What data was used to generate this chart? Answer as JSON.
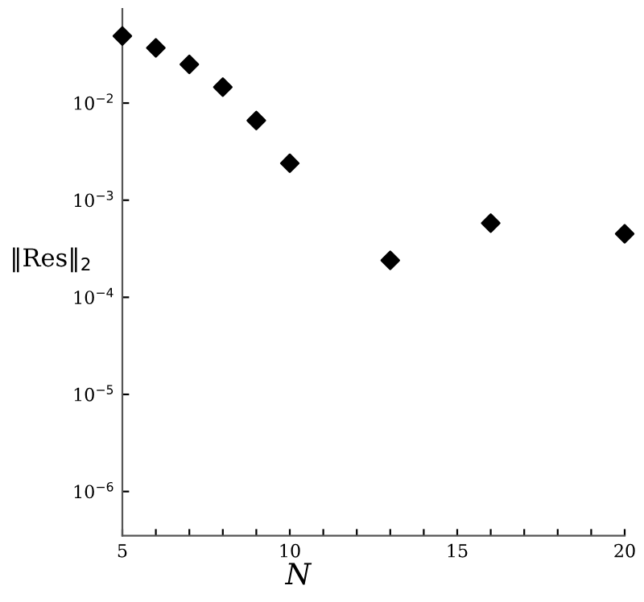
{
  "chart_data": {
    "type": "scatter",
    "xlabel": "N",
    "ylabel": "‖Res‖$_{2}$",
    "x": [
      5,
      6,
      7,
      8,
      9,
      10,
      13,
      16,
      20
    ],
    "series": [
      {
        "color": "#000000",
        "values": [
          0.049,
          0.037,
          0.025,
          0.0146,
          0.0066,
          0.0024,
          0.00024,
          0.00058,
          0.00045
        ]
      }
    ],
    "log": "y",
    "marker": "diamond",
    "grid": false,
    "xlim": [
      5,
      20
    ],
    "ylim": [
      3.5e-07,
      0.093
    ],
    "xticks": [
      5,
      {
        "value": 6,
        "label": null
      },
      {
        "value": 7,
        "label": null
      },
      {
        "value": 8,
        "label": null
      },
      {
        "value": 9,
        "label": null
      },
      10,
      {
        "value": 11,
        "label": null
      },
      {
        "value": 12,
        "label": null
      },
      {
        "value": 13,
        "label": null
      },
      {
        "value": 14,
        "label": null
      },
      15,
      {
        "value": 16,
        "label": null
      },
      {
        "value": 17,
        "label": null
      },
      {
        "value": 18,
        "label": null
      },
      {
        "value": 19,
        "label": null
      },
      20
    ],
    "yticks": [
      {
        "value": 1e-06,
        "label": "10$^{−6}$"
      },
      {
        "value": 1e-05,
        "label": "10$^{−5}$"
      },
      {
        "value": 0.0001,
        "label": "10$^{−4}$"
      },
      {
        "value": 0.001,
        "label": "10$^{−3}$"
      },
      {
        "value": 0.01,
        "label": "10$^{−2}$"
      }
    ]
  }
}
